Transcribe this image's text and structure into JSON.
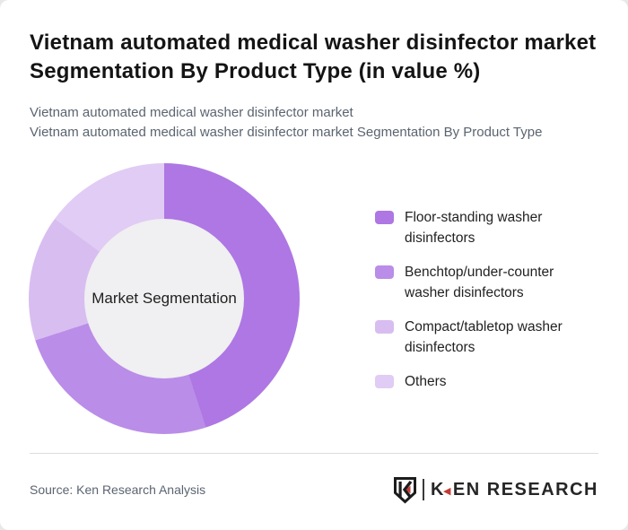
{
  "page": {
    "title": "Vietnam automated medical washer disinfector market Segmentation By Product Type (in value %)",
    "subtitle_line1": "Vietnam automated medical washer disinfector market",
    "subtitle_line2": "Vietnam automated medical washer disinfector market Segmentation By Product Type"
  },
  "chart_data": {
    "type": "pie",
    "variant": "donut",
    "title": "Vietnam automated medical washer disinfector market Segmentation By Product Type (in value %)",
    "center_label": "Market Segmentation",
    "categories": [
      "Floor-standing washer disinfectors",
      "Benchtop/under-counter washer disinfectors",
      "Compact/tabletop washer disinfectors",
      "Others"
    ],
    "values": [
      45,
      25,
      15,
      15
    ],
    "unit": "value %",
    "colors": [
      "#ae77e4",
      "#ba8de8",
      "#d8bdf1",
      "#e0ccf4"
    ],
    "center_fill": "#f0eff1",
    "start_angle_deg": 0,
    "direction": "clockwise",
    "legend_position": "right"
  },
  "footer": {
    "source": "Source: Ken Research Analysis",
    "logo": {
      "emblem_letter": "K",
      "brand_k": "K",
      "brand_rest": "EN RESEARCH",
      "accent_color": "#c23b34",
      "dark_color": "#262626"
    }
  }
}
